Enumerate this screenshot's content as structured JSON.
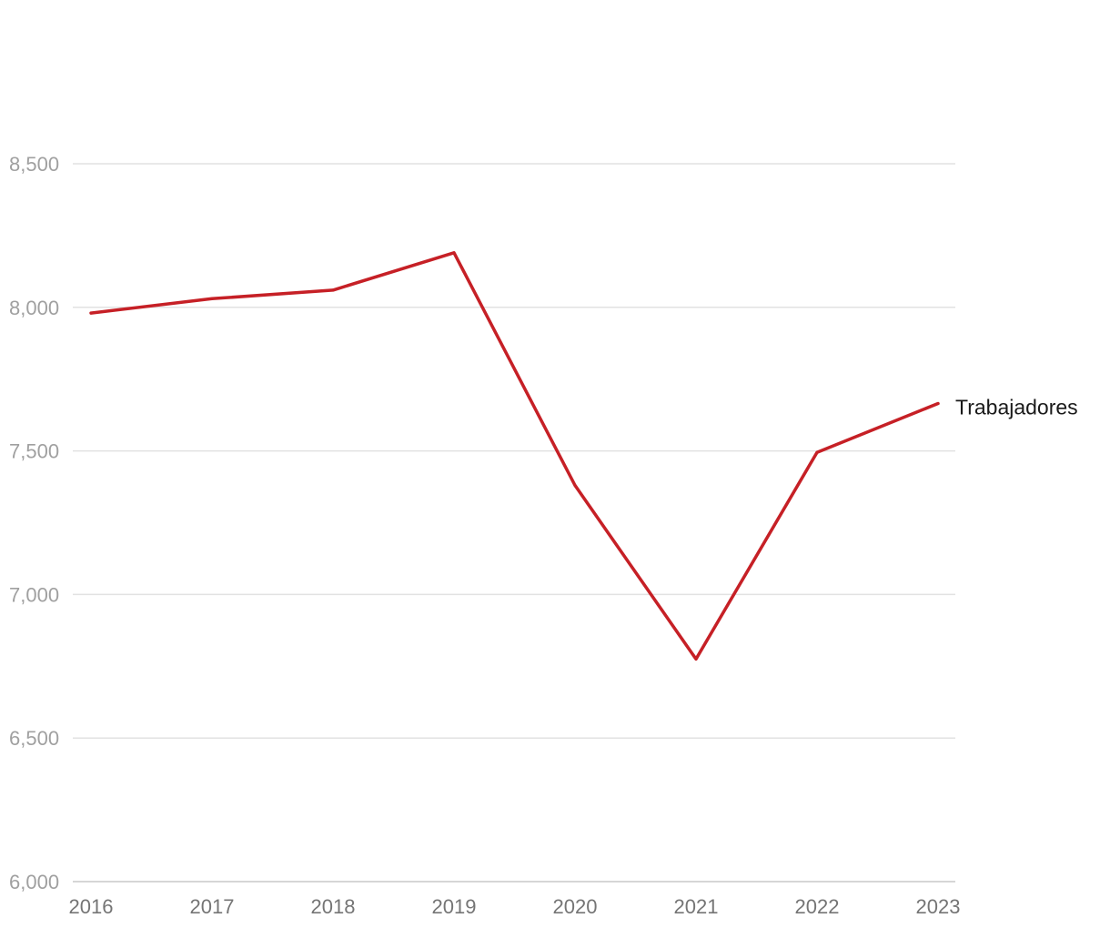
{
  "chart_data": {
    "type": "line",
    "title": "",
    "xlabel": "",
    "ylabel": "",
    "categories": [
      "2016",
      "2017",
      "2018",
      "2019",
      "2020",
      "2021",
      "2022",
      "2023"
    ],
    "series": [
      {
        "name": "Trabajadores",
        "color": "#c62026",
        "values": [
          7980,
          8030,
          8060,
          8190,
          7380,
          6775,
          7495,
          7665
        ]
      }
    ],
    "ylim": [
      6000,
      8900
    ],
    "yticks": [
      {
        "value": 6000,
        "label": "6,000"
      },
      {
        "value": 6500,
        "label": "6,500"
      },
      {
        "value": 7000,
        "label": "7,000"
      },
      {
        "value": 7500,
        "label": "7,500"
      },
      {
        "value": 8000,
        "label": "8,000"
      },
      {
        "value": 8500,
        "label": "8,500"
      }
    ],
    "grid": true,
    "legend": "inline-end-label"
  }
}
